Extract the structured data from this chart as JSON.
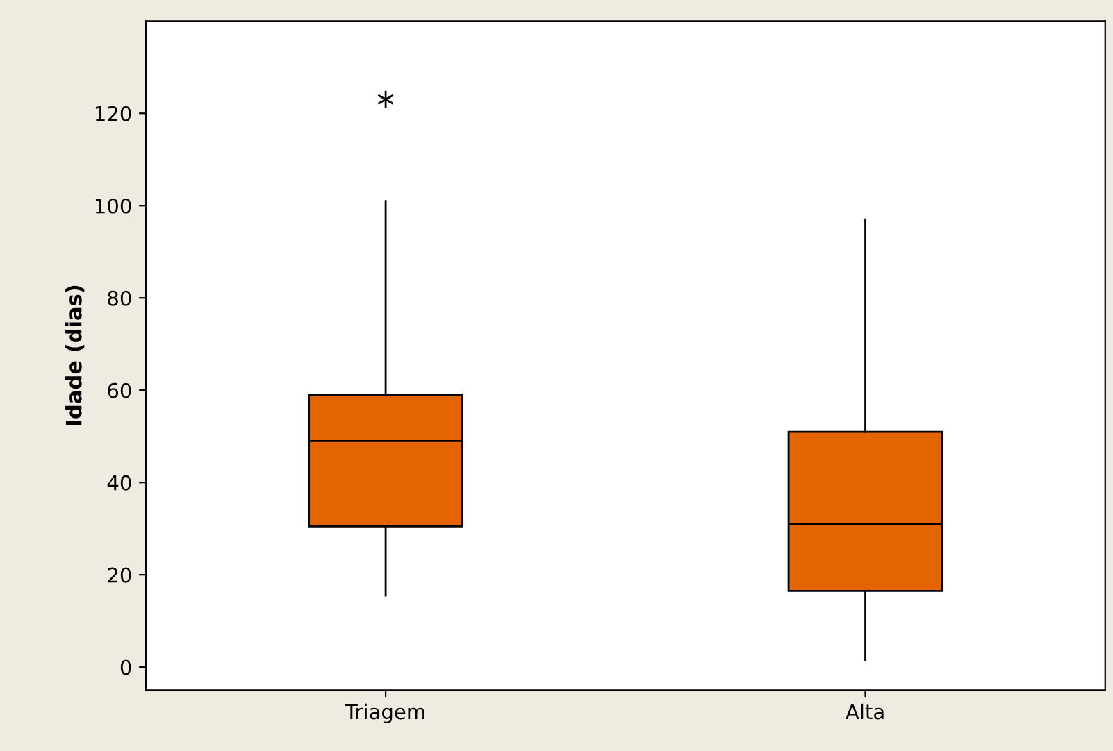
{
  "chart_data": {
    "type": "box",
    "ylabel": "Idade (dias)",
    "categories": [
      "Triagem",
      "Alta"
    ],
    "boxes": [
      {
        "low": 15.5,
        "q1": 30.5,
        "median": 49,
        "q3": 59,
        "high": 101,
        "outliers": [
          123
        ]
      },
      {
        "low": 1.5,
        "q1": 16.5,
        "median": 31,
        "q3": 51,
        "high": 97
      }
    ],
    "color": "#e36400",
    "ylim": [
      -5,
      140
    ],
    "yticks": [
      0,
      20,
      40,
      60,
      80,
      100,
      120
    ],
    "grid": false,
    "marker": "star"
  }
}
